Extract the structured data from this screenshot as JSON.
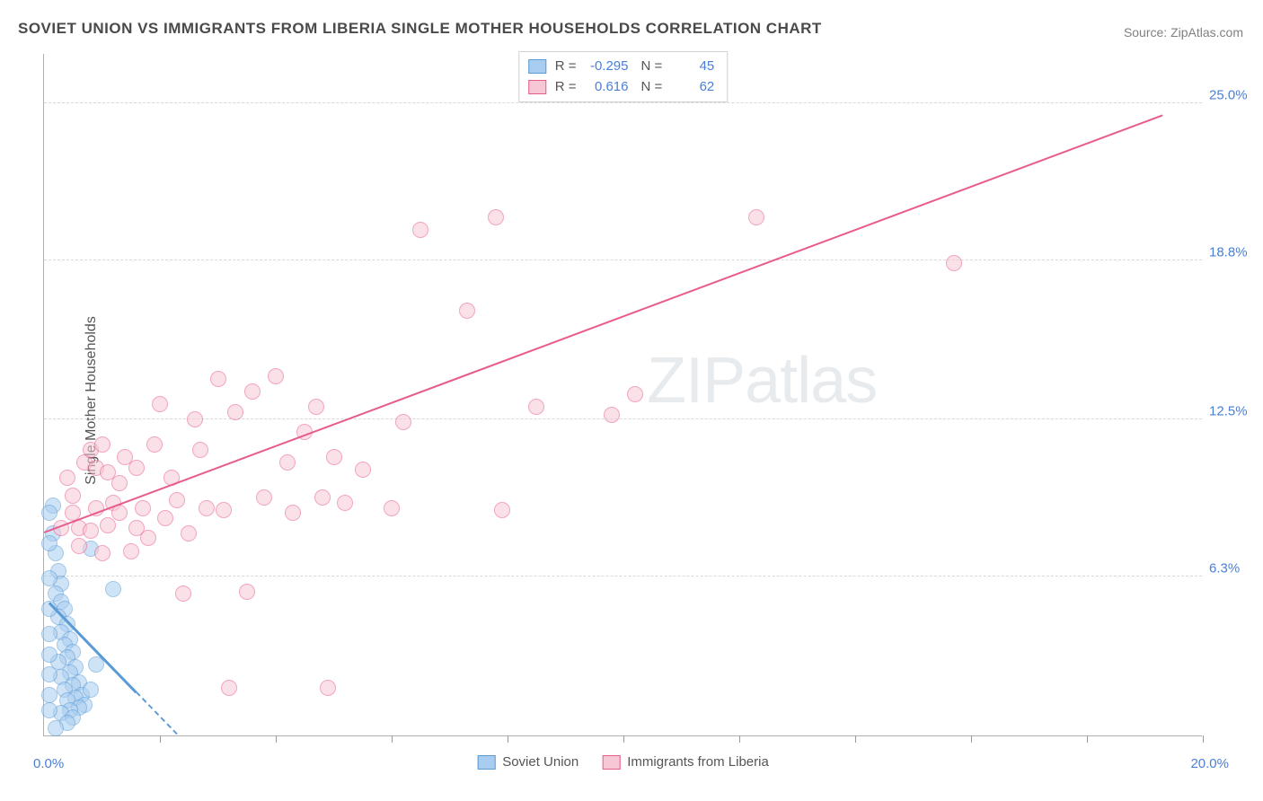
{
  "title": "SOVIET UNION VS IMMIGRANTS FROM LIBERIA SINGLE MOTHER HOUSEHOLDS CORRELATION CHART",
  "source_label": "Source:",
  "source_value": "ZipAtlas.com",
  "ylabel": "Single Mother Households",
  "watermark": "ZIPatlas",
  "chart": {
    "type": "scatter",
    "xlim": [
      0,
      20
    ],
    "ylim": [
      0,
      27
    ],
    "y_ticks": [
      6.3,
      12.5,
      18.8,
      25.0
    ],
    "y_tick_labels": [
      "6.3%",
      "12.5%",
      "18.8%",
      "25.0%"
    ],
    "x_grid_positions": [
      2,
      4,
      6,
      8,
      10,
      12,
      14,
      16,
      18,
      20
    ],
    "x_min_label": "0.0%",
    "x_max_label": "20.0%",
    "background_color": "#ffffff",
    "grid_color": "#d8d8d8",
    "axis_color": "#b0b0b0",
    "tick_label_color": "#4a7fd6",
    "point_radius": 9,
    "point_opacity": 0.55,
    "series": [
      {
        "name": "Soviet Union",
        "color_fill": "#a8cdf0",
        "color_stroke": "#5b9bd5",
        "r": -0.295,
        "n": 45,
        "trend": {
          "x1": 0.1,
          "y1": 5.2,
          "x2": 2.3,
          "y2": 0.0,
          "dash_after": 1.6,
          "width": 2.5
        },
        "points": [
          [
            0.15,
            9.1
          ],
          [
            0.15,
            8.0
          ],
          [
            0.2,
            7.2
          ],
          [
            0.25,
            6.5
          ],
          [
            0.3,
            6.0
          ],
          [
            0.2,
            5.6
          ],
          [
            0.3,
            5.3
          ],
          [
            0.35,
            5.0
          ],
          [
            0.25,
            4.7
          ],
          [
            0.4,
            4.4
          ],
          [
            0.3,
            4.1
          ],
          [
            0.45,
            3.8
          ],
          [
            0.35,
            3.6
          ],
          [
            0.5,
            3.3
          ],
          [
            0.4,
            3.1
          ],
          [
            0.25,
            2.9
          ],
          [
            0.55,
            2.7
          ],
          [
            0.45,
            2.5
          ],
          [
            0.3,
            2.3
          ],
          [
            0.6,
            2.1
          ],
          [
            0.5,
            2.0
          ],
          [
            0.35,
            1.8
          ],
          [
            0.65,
            1.6
          ],
          [
            0.55,
            1.5
          ],
          [
            0.4,
            1.4
          ],
          [
            0.7,
            1.2
          ],
          [
            0.6,
            1.1
          ],
          [
            0.45,
            1.0
          ],
          [
            0.3,
            0.9
          ],
          [
            0.5,
            0.7
          ],
          [
            0.4,
            0.5
          ],
          [
            0.1,
            8.8
          ],
          [
            0.1,
            7.6
          ],
          [
            0.1,
            6.2
          ],
          [
            0.1,
            5.0
          ],
          [
            0.1,
            4.0
          ],
          [
            0.1,
            3.2
          ],
          [
            0.1,
            2.4
          ],
          [
            0.1,
            1.6
          ],
          [
            0.1,
            1.0
          ],
          [
            1.2,
            5.8
          ],
          [
            0.8,
            7.4
          ],
          [
            0.9,
            2.8
          ],
          [
            0.8,
            1.8
          ],
          [
            0.2,
            0.3
          ]
        ]
      },
      {
        "name": "Immigrants from Liberia",
        "color_fill": "#f6c7d4",
        "color_stroke": "#e85b8d",
        "r": 0.616,
        "n": 62,
        "trend": {
          "x1": 0.0,
          "y1": 8.0,
          "x2": 19.3,
          "y2": 24.5,
          "width": 2
        },
        "points": [
          [
            0.3,
            8.2
          ],
          [
            0.4,
            10.2
          ],
          [
            0.5,
            9.5
          ],
          [
            0.6,
            8.2
          ],
          [
            0.7,
            10.8
          ],
          [
            0.8,
            11.3
          ],
          [
            0.8,
            8.1
          ],
          [
            0.9,
            10.6
          ],
          [
            1.0,
            7.2
          ],
          [
            1.1,
            10.4
          ],
          [
            1.2,
            9.2
          ],
          [
            1.3,
            8.8
          ],
          [
            1.4,
            11.0
          ],
          [
            1.5,
            7.3
          ],
          [
            1.6,
            10.6
          ],
          [
            1.7,
            9.0
          ],
          [
            1.8,
            7.8
          ],
          [
            2.0,
            13.1
          ],
          [
            2.1,
            8.6
          ],
          [
            2.3,
            9.3
          ],
          [
            2.4,
            5.6
          ],
          [
            2.6,
            12.5
          ],
          [
            2.8,
            9.0
          ],
          [
            3.0,
            14.1
          ],
          [
            3.1,
            8.9
          ],
          [
            3.2,
            1.9
          ],
          [
            3.3,
            12.8
          ],
          [
            3.5,
            5.7
          ],
          [
            3.6,
            13.6
          ],
          [
            3.8,
            9.4
          ],
          [
            4.0,
            14.2
          ],
          [
            4.2,
            10.8
          ],
          [
            4.3,
            8.8
          ],
          [
            4.5,
            12.0
          ],
          [
            4.7,
            13.0
          ],
          [
            4.8,
            9.4
          ],
          [
            4.9,
            1.9
          ],
          [
            5.0,
            11.0
          ],
          [
            5.2,
            9.2
          ],
          [
            5.5,
            10.5
          ],
          [
            6.0,
            9.0
          ],
          [
            6.2,
            12.4
          ],
          [
            6.5,
            20.0
          ],
          [
            7.3,
            16.8
          ],
          [
            7.8,
            20.5
          ],
          [
            7.9,
            8.9
          ],
          [
            8.5,
            13.0
          ],
          [
            9.8,
            12.7
          ],
          [
            10.2,
            13.5
          ],
          [
            12.3,
            20.5
          ],
          [
            15.7,
            18.7
          ],
          [
            0.5,
            8.8
          ],
          [
            0.6,
            7.5
          ],
          [
            0.9,
            9.0
          ],
          [
            1.0,
            11.5
          ],
          [
            1.1,
            8.3
          ],
          [
            1.3,
            10.0
          ],
          [
            1.6,
            8.2
          ],
          [
            1.9,
            11.5
          ],
          [
            2.2,
            10.2
          ],
          [
            2.5,
            8.0
          ],
          [
            2.7,
            11.3
          ]
        ]
      }
    ]
  },
  "legend_top": {
    "r_label": "R =",
    "n_label": "N ="
  },
  "legend_bottom": [
    "Soviet Union",
    "Immigrants from Liberia"
  ]
}
